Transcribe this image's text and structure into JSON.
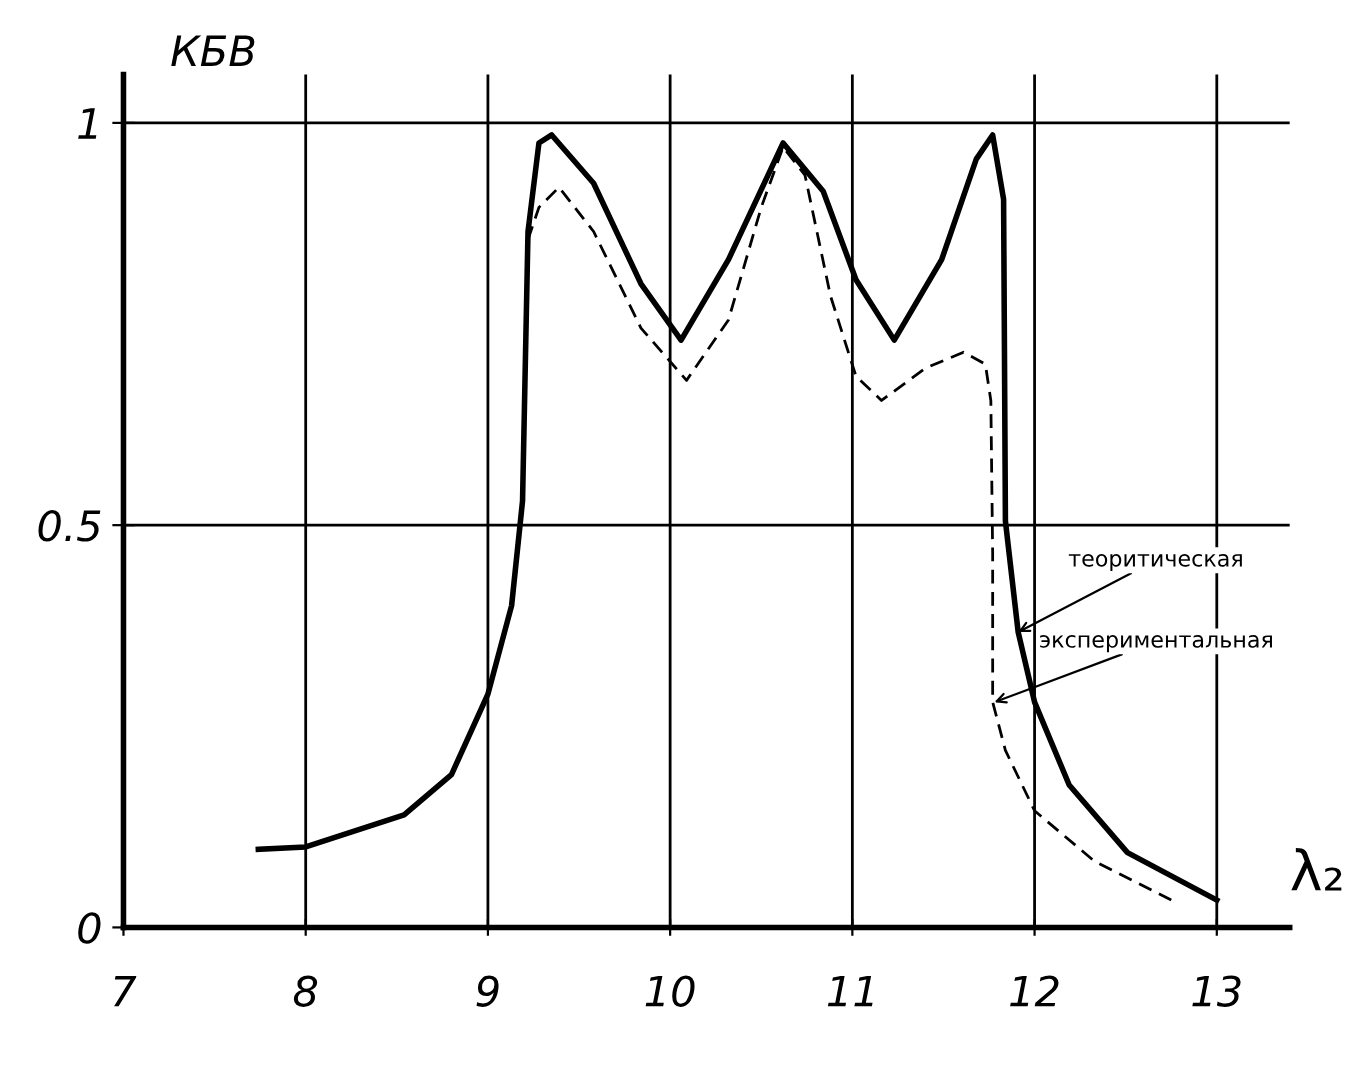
{
  "chart_data": {
    "type": "line",
    "xlabel": "λ₂",
    "ylabel": "КБВ",
    "xlim": [
      7,
      13.4
    ],
    "ylim": [
      0,
      1.06
    ],
    "xticks": [
      7,
      8,
      9,
      10,
      11,
      12,
      13
    ],
    "yticks": [
      0,
      0.5,
      1
    ],
    "grid": true,
    "legend": false,
    "marker": "none",
    "series": [
      {
        "color": "#000000",
        "line_style": "solid",
        "x": [
          7.74,
          8,
          8.54,
          8.8,
          9,
          9.13,
          9.19,
          9.22,
          9.28,
          9.35,
          9.58,
          9.84,
          10.06,
          10.32,
          10.62,
          10.84,
          11.02,
          11.23,
          11.49,
          11.68,
          11.77,
          11.83,
          11.84,
          11.91,
          12,
          12.19,
          12.51,
          13
        ],
        "values": [
          0.097,
          0.1,
          0.14,
          0.19,
          0.29,
          0.4,
          0.53,
          0.865,
          0.975,
          0.985,
          0.925,
          0.8,
          0.73,
          0.83,
          0.975,
          0.915,
          0.805,
          0.73,
          0.83,
          0.955,
          0.985,
          0.905,
          0.505,
          0.367,
          0.28,
          0.177,
          0.093,
          0.034
        ]
      },
      {
        "color": "#000000",
        "line_style": "dashed",
        "x": [
          9.22,
          9.28,
          9.39,
          9.58,
          9.84,
          10.09,
          10.32,
          10.5,
          10.62,
          10.74,
          10.88,
          11.02,
          11.16,
          11.4,
          11.61,
          11.73,
          11.76,
          11.77,
          11.77,
          11.84,
          12,
          12.33,
          12.75
        ],
        "values": [
          0.855,
          0.895,
          0.92,
          0.865,
          0.745,
          0.68,
          0.755,
          0.895,
          0.97,
          0.935,
          0.785,
          0.685,
          0.655,
          0.695,
          0.715,
          0.7,
          0.655,
          0.464,
          0.28,
          0.22,
          0.145,
          0.082,
          0.034
        ]
      }
    ],
    "annotations": [
      {
        "text": "теоритическая",
        "x": 11.91,
        "y": 0.367
      },
      {
        "text": "экспериментальная",
        "x": 11.78,
        "y": 0.28
      }
    ]
  }
}
